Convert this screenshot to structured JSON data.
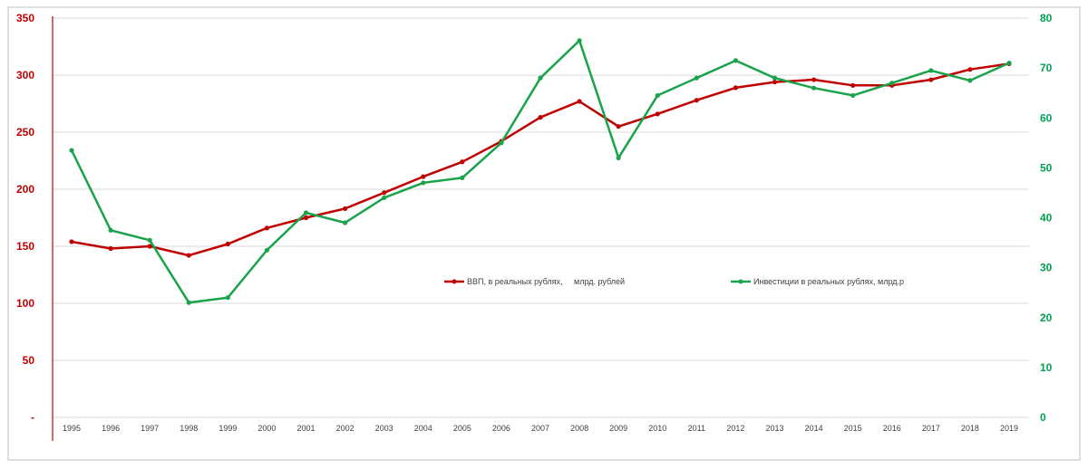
{
  "chart_data": {
    "type": "line",
    "categories": [
      "1995",
      "1996",
      "1997",
      "1998",
      "1999",
      "2000",
      "2001",
      "2002",
      "2003",
      "2004",
      "2005",
      "2006",
      "2007",
      "2008",
      "2009",
      "2010",
      "2011",
      "2012",
      "2013",
      "2014",
      "2015",
      "2016",
      "2017",
      "2018",
      "2019"
    ],
    "series": [
      {
        "name": "ВВП, в реальных рублях,     млрд. рублей",
        "axis": "left",
        "color": "#c00000",
        "values": [
          154,
          148,
          150,
          142,
          152,
          166,
          175,
          183,
          197,
          211,
          224,
          242,
          263,
          277,
          255,
          266,
          278,
          289,
          294,
          296,
          291,
          291,
          296,
          305,
          310
        ]
      },
      {
        "name": "Инвестиции в реальных рублях, млрд.р",
        "axis": "right",
        "color": "#1aa34a",
        "values": [
          53.5,
          37.5,
          35.5,
          23,
          24,
          33.5,
          41,
          39,
          44,
          47,
          48,
          55,
          68,
          75.5,
          52,
          64.5,
          68,
          71.5,
          68,
          66,
          64.5,
          67,
          69.5,
          67.5,
          71
        ]
      }
    ],
    "y_left": {
      "ylim": [
        0,
        350
      ],
      "tick_values": [
        0,
        50,
        100,
        150,
        200,
        250,
        300,
        350
      ],
      "tick_labels": [
        "-",
        "50",
        "100",
        "150",
        "200",
        "250",
        "300",
        "350"
      ],
      "color": "#c00000"
    },
    "y_right": {
      "ylim": [
        0,
        80
      ],
      "tick_values": [
        0,
        10,
        20,
        30,
        40,
        50,
        60,
        70,
        80
      ],
      "tick_labels": [
        "0",
        "10",
        "20",
        "30",
        "40",
        "50",
        "60",
        "70",
        "80"
      ],
      "color": "#00a050"
    },
    "grid": true,
    "legend_position": "center",
    "title": "",
    "xlabel": "",
    "ylabel": ""
  }
}
